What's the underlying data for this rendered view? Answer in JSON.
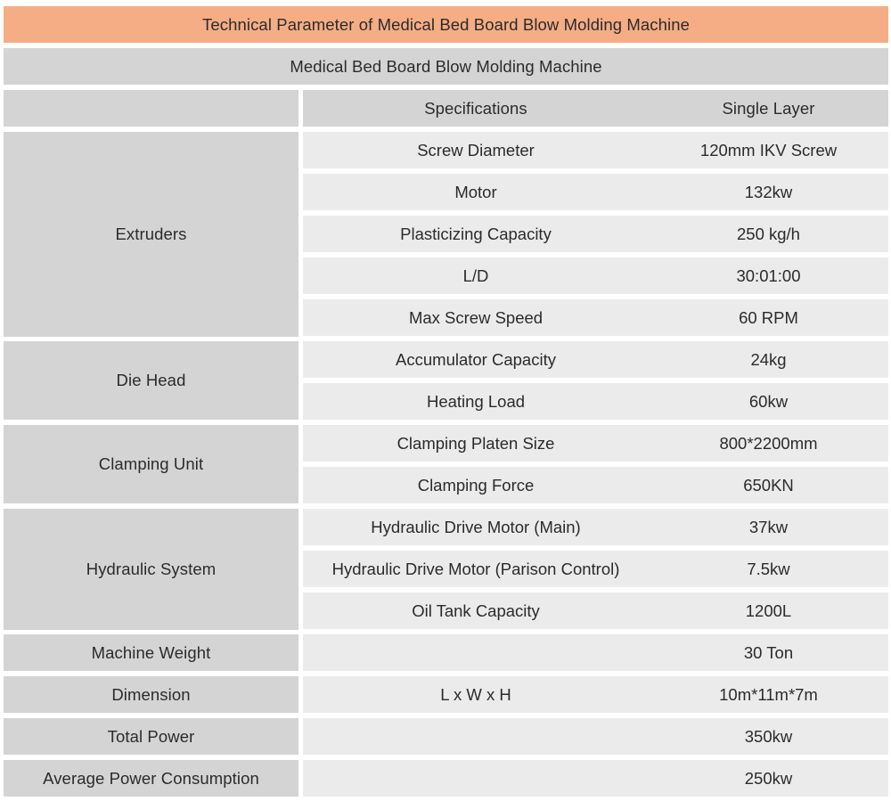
{
  "title": "Technical Parameter of Medical Bed Board Blow Molding Machine",
  "subtitle": "Medical Bed Board Blow Molding Machine",
  "header": {
    "specifications": "Specifications",
    "single_layer": "Single Layer"
  },
  "groups": {
    "extruders": "Extruders",
    "die_head": "Die Head",
    "clamping_unit": "Clamping Unit",
    "hydraulic_system": "Hydraulic System",
    "machine_weight": "Machine Weight",
    "dimension": "Dimension",
    "total_power": "Total Power",
    "average_power": "Average Power Consumption"
  },
  "rows": [
    {
      "spec": "Screw Diameter",
      "value": "120mm IKV Screw"
    },
    {
      "spec": "Motor",
      "value": "132kw"
    },
    {
      "spec": "Plasticizing Capacity",
      "value": "250 kg/h"
    },
    {
      "spec": "L/D",
      "value": "30:01:00"
    },
    {
      "spec": "Max Screw Speed",
      "value": "60 RPM"
    },
    {
      "spec": "Accumulator Capacity",
      "value": "24kg"
    },
    {
      "spec": "Heating Load",
      "value": "60kw"
    },
    {
      "spec": "Clamping Platen Size",
      "value": "800*2200mm"
    },
    {
      "spec": "Clamping Force",
      "value": "650KN"
    },
    {
      "spec": "Hydraulic Drive Motor (Main)",
      "value": "37kw"
    },
    {
      "spec": "Hydraulic Drive Motor (Parison Control)",
      "value": "7.5kw"
    },
    {
      "spec": "Oil Tank Capacity",
      "value": "1200L"
    },
    {
      "spec": "",
      "value": "30 Ton"
    },
    {
      "spec": "L x W x H",
      "value": "10m*11m*7m"
    },
    {
      "spec": "",
      "value": "350kw"
    },
    {
      "spec": "",
      "value": "250kw"
    }
  ]
}
